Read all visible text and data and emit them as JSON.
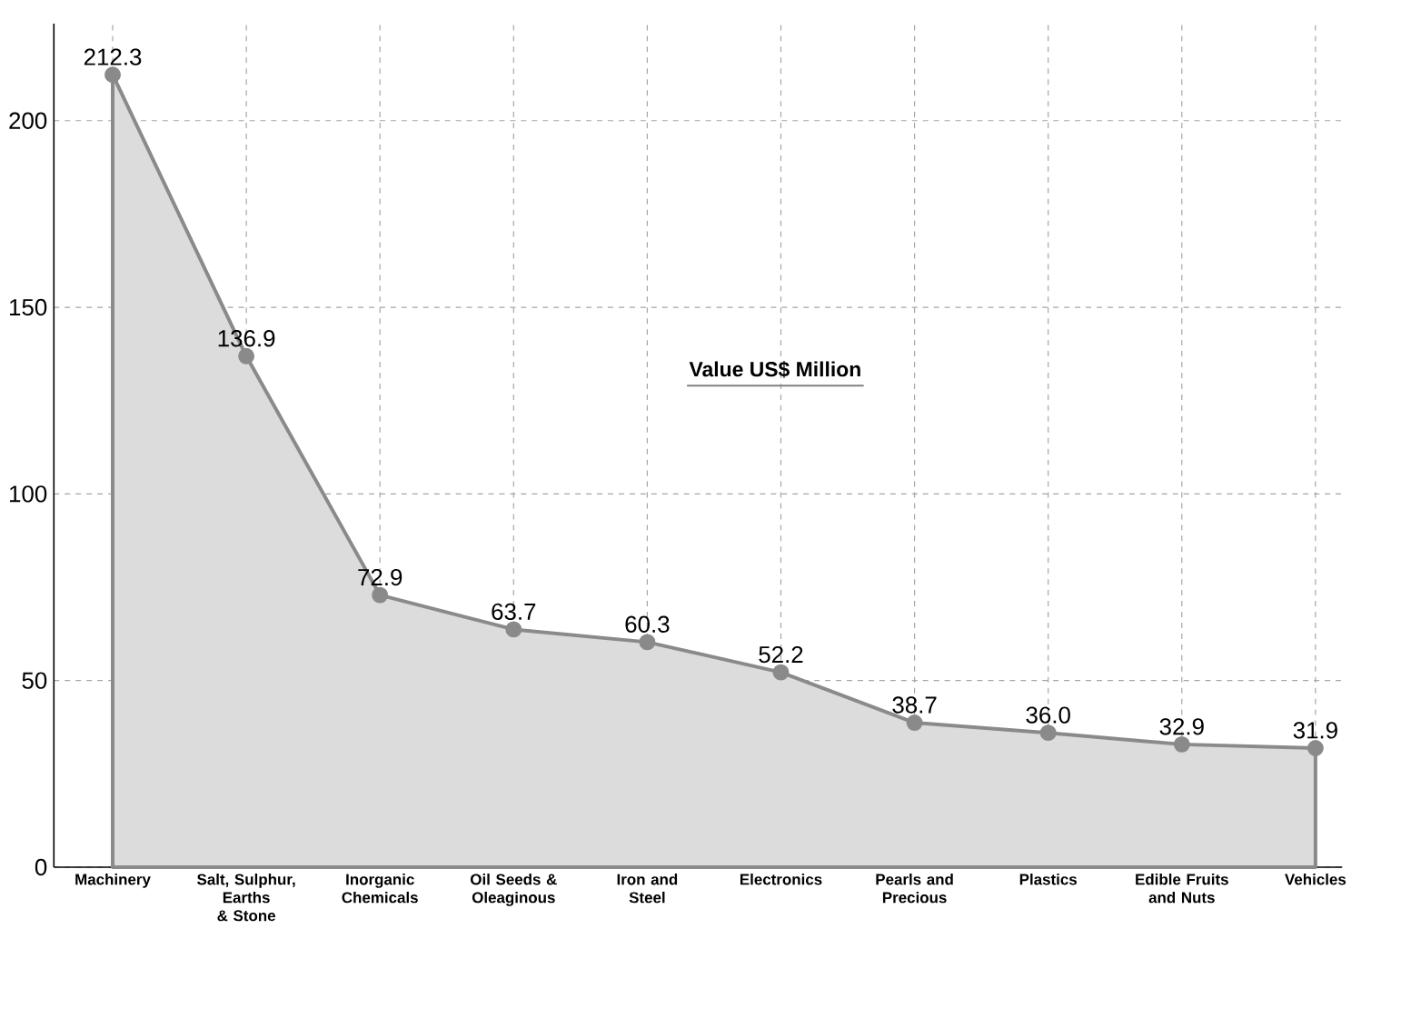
{
  "chart_data": {
    "type": "area",
    "categories": [
      "Machinery",
      "Salt, Sulphur, Earths & Stone",
      "Inorganic Chemicals",
      "Oil Seeds & Oleaginous",
      "Iron and Steel",
      "Electronics",
      "Pearls and Precious",
      "Plastics",
      "Edible Fruits and Nuts",
      "Vehicles"
    ],
    "values": [
      212.3,
      136.9,
      72.9,
      63.7,
      60.3,
      52.2,
      38.7,
      36.0,
      32.9,
      31.9
    ],
    "color": "#8a8a8a",
    "ylim": [
      0,
      226
    ],
    "yticks": [
      0,
      50,
      100,
      150,
      200
    ],
    "value_labels": [
      "212.3",
      "136.9",
      "72.9",
      "63.7",
      "60.3",
      "52.2",
      "38.7",
      "36.0",
      "32.9",
      "31.9"
    ],
    "grid": true,
    "marker": "circle",
    "annotations": [
      "Value US$ Million"
    ]
  }
}
